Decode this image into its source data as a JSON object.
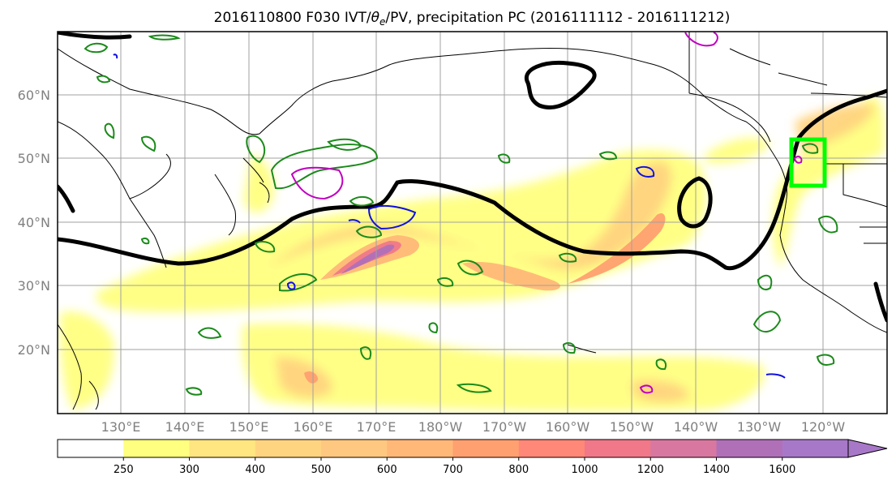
{
  "title": {
    "prefix": "2016110800 F030 IVT/",
    "theta": "θ",
    "theta_sub": "e",
    "suffix": "/PV, precipitation PC (2016111112 - 2016111212)"
  },
  "map": {
    "lat_labels": [
      "60°N",
      "50°N",
      "40°N",
      "30°N",
      "20°N"
    ],
    "lon_labels": [
      "130°E",
      "140°E",
      "150°E",
      "160°E",
      "170°E",
      "180°W",
      "170°W",
      "160°W",
      "150°W",
      "140°W",
      "130°W",
      "120°W"
    ],
    "colors": {
      "ocean": "#ffffff",
      "coast": "#000000",
      "grid": "#a0a0a0",
      "theta_contour": "#000000",
      "pv_green": "#1a8a1a",
      "pv_magenta": "#c000c0",
      "pv_blue": "#1010e0",
      "target_box": "#00ff00"
    }
  },
  "colorbar": {
    "ticks": [
      "250",
      "300",
      "400",
      "500",
      "600",
      "700",
      "800",
      "1000",
      "1200",
      "1400",
      "1600"
    ],
    "colors": [
      "#ffffff",
      "#ffff80",
      "#ffe680",
      "#ffd480",
      "#ffc880",
      "#ffb878",
      "#ffa070",
      "#ff8878",
      "#f07888",
      "#d878a0",
      "#b070b8",
      "#a878c8"
    ]
  }
}
